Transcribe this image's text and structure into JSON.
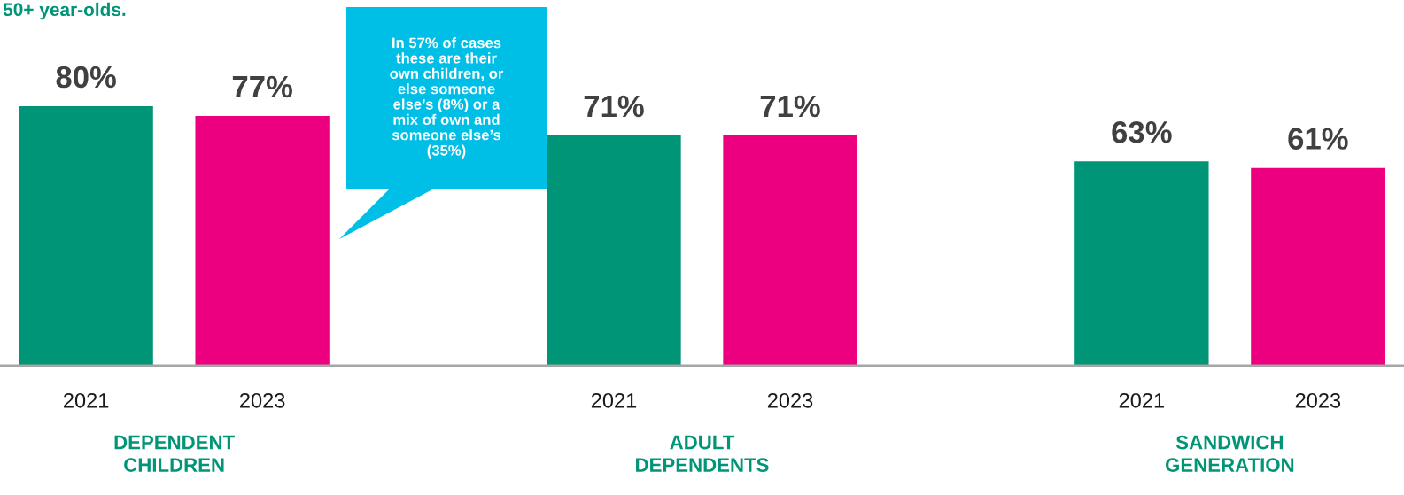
{
  "chart_data": {
    "type": "bar",
    "title": "50+ year-olds.",
    "categories": [
      "DEPENDENT\nCHILDREN",
      "ADULT\nDEPENDENTS",
      "SANDWICH\nGENERATION"
    ],
    "series": [
      {
        "name": "2021",
        "color": "#009577",
        "values": [
          80,
          71,
          63
        ],
        "value_labels": [
          "80%",
          "71%",
          "63%"
        ]
      },
      {
        "name": "2023",
        "color": "#ec0080",
        "values": [
          77,
          71,
          61
        ],
        "value_labels": [
          "77%",
          "71%",
          "61%"
        ]
      }
    ],
    "annotations": [
      "In 57% of cases\nthese are their\nown children, or\nelse someone\nelse’s (8%) or a\nmix of own and\nsomeone else’s\n(35%)"
    ],
    "legend": false
  }
}
